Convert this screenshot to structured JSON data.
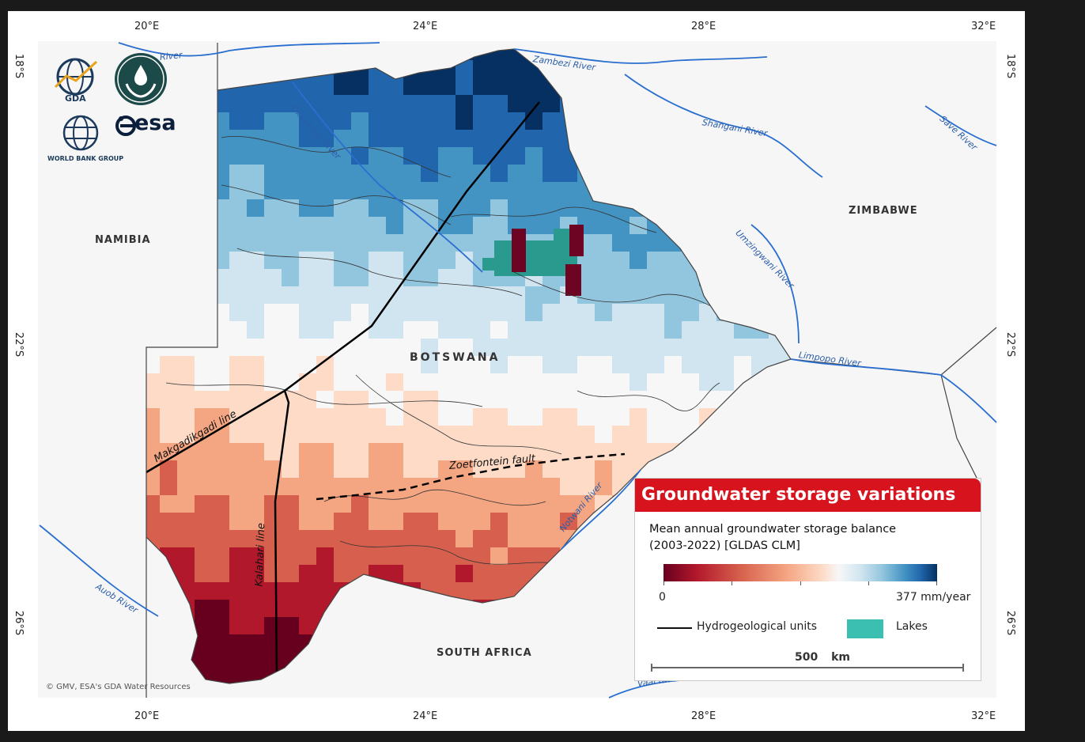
{
  "coordinates": {
    "top_lon": [
      "20°E",
      "24°E",
      "28°E",
      "32°E"
    ],
    "bottom_lon": [
      "20°E",
      "24°E",
      "28°E",
      "32°E"
    ],
    "left_lat": [
      "18°S",
      "22°S",
      "26°S"
    ],
    "right_lat": [
      "18°S",
      "22°S",
      "26°S"
    ]
  },
  "countries": {
    "namibia": "NAMIBIA",
    "botswana": "BOTSWANA",
    "zimbabwe": "ZIMBABWE",
    "south_africa": "SOUTH AFRICA"
  },
  "rivers": {
    "zambezi": "Zambezi River",
    "shangani": "Shangani River",
    "save": "Save River",
    "okavango": "Okavango River",
    "umzingwani": "Umzingwani River",
    "limpopo": "Limpopo River",
    "notwani": "Notwani River",
    "aub": "Auob River",
    "vaal": "Vaal River",
    "cuando_partial": "River"
  },
  "geology_lines": {
    "makgadikgadi": "Makgadikgadi line",
    "zoetfontein": "Zoetfontein fault",
    "kalahari": "Kalahari line"
  },
  "logos": {
    "gda": "GDA",
    "world_bank": "WORLD BANK GROUP",
    "esa": "esa"
  },
  "copyright": "© GMV, ESA's GDA Water Resources",
  "legend": {
    "title": "Groundwater storage variations",
    "subtitle_line1": "Mean annual groundwater storage balance",
    "subtitle_line2": "(2003-2022) [GLDAS CLM]",
    "min_label": "0",
    "max_label": "377 mm/year",
    "hydro_units_label": "Hydrogeological units",
    "lakes_label": "Lakes",
    "scale_value": "500",
    "scale_unit": "km",
    "title_color": "#d7141e",
    "lake_color": "#3bbfb0"
  },
  "colors": {
    "river": "#2a6fd0",
    "country_border": "#333333",
    "colormap": [
      "#67001f",
      "#b2182b",
      "#d6604d",
      "#f4a582",
      "#fddbc7",
      "#f7f7f7",
      "#d1e5f0",
      "#92c5de",
      "#4393c3",
      "#2166ac",
      "#053061"
    ]
  }
}
